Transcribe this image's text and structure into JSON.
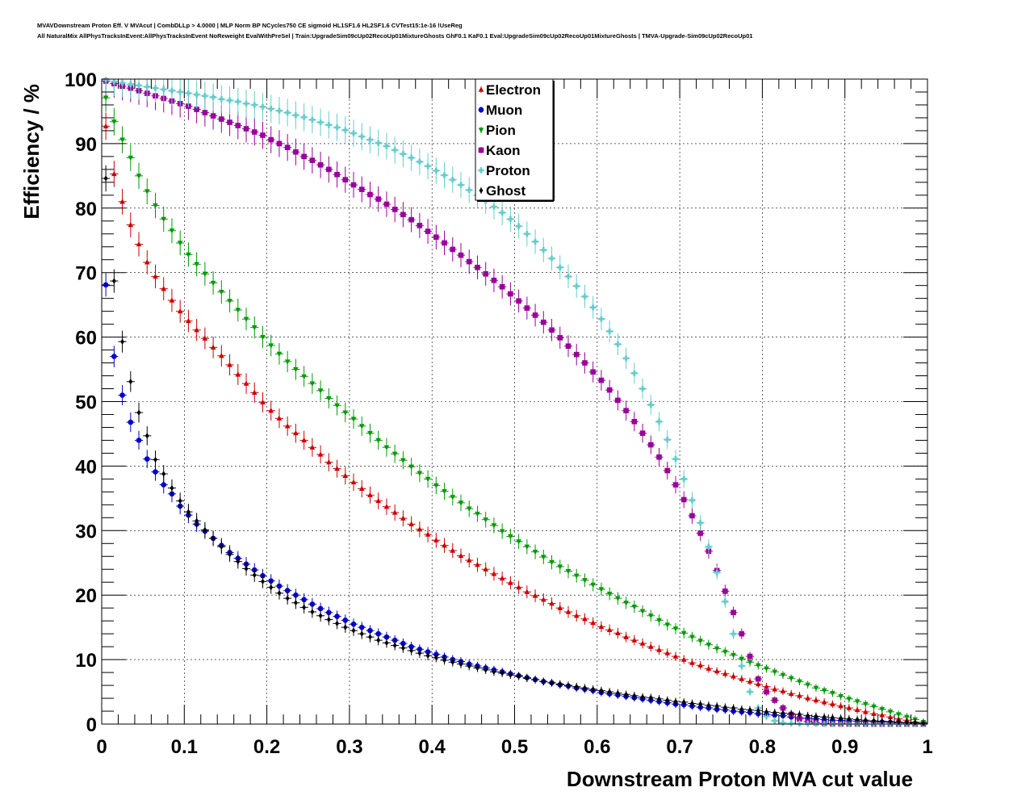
{
  "header": {
    "line1": "MVAVDownstream Proton Eff. V MVAcut | CombDLLp > 4.0000 | MLP Norm BP NCycles750 CE sigmoid HL1SF1.6 HL2SF1.6 CVTest15:1e-16 !UseReg",
    "line2": "All NaturalMix AllPhysTracksInEvent:AllPhysTracksInEvent NoReweight EvalWithPreSel | Train:UpgradeSim09cUp02RecoUp01MixtureGhosts GhF0.1 KaF0.1 Eval:UpgradeSim09cUp02RecoUp01MixtureGhosts | TMVA-Upgrade-Sim09cUp02RecoUp01"
  },
  "chart_data": {
    "type": "scatter",
    "xlabel": "Downstream Proton MVA cut value",
    "ylabel": "Efficiency / %",
    "xlim": [
      0,
      1
    ],
    "ylim": [
      0,
      100
    ],
    "grid": true,
    "legend_position": "top-center",
    "x_ticks": [
      "0",
      "0.1",
      "0.2",
      "0.3",
      "0.4",
      "0.5",
      "0.6",
      "0.7",
      "0.8",
      "0.9",
      "1"
    ],
    "y_ticks": [
      "0",
      "10",
      "20",
      "30",
      "40",
      "50",
      "60",
      "70",
      "80",
      "90",
      "100"
    ],
    "x": [
      0.005,
      0.015,
      0.025,
      0.035,
      0.045,
      0.055,
      0.065,
      0.075,
      0.085,
      0.095,
      0.105,
      0.115,
      0.125,
      0.135,
      0.145,
      0.155,
      0.165,
      0.175,
      0.185,
      0.195,
      0.205,
      0.215,
      0.225,
      0.235,
      0.245,
      0.255,
      0.265,
      0.275,
      0.285,
      0.295,
      0.305,
      0.315,
      0.325,
      0.335,
      0.345,
      0.355,
      0.365,
      0.375,
      0.385,
      0.395,
      0.405,
      0.415,
      0.425,
      0.435,
      0.445,
      0.455,
      0.465,
      0.475,
      0.485,
      0.495,
      0.505,
      0.515,
      0.525,
      0.535,
      0.545,
      0.555,
      0.565,
      0.575,
      0.585,
      0.595,
      0.605,
      0.615,
      0.625,
      0.635,
      0.645,
      0.655,
      0.665,
      0.675,
      0.685,
      0.695,
      0.705,
      0.715,
      0.725,
      0.735,
      0.745,
      0.755,
      0.765,
      0.775,
      0.785,
      0.795,
      0.805,
      0.815,
      0.825,
      0.835,
      0.845,
      0.855,
      0.865,
      0.875,
      0.885,
      0.895,
      0.905,
      0.915,
      0.925,
      0.935,
      0.945,
      0.955,
      0.965,
      0.975,
      0.985,
      0.995
    ],
    "series": [
      {
        "name": "Electron",
        "color": "#cc0000",
        "marker": "triangle-up",
        "values": [
          92.7,
          85.3,
          81.0,
          77.4,
          74.4,
          71.6,
          69.4,
          67.5,
          65.7,
          64.0,
          62.5,
          61.1,
          59.8,
          58.4,
          57.1,
          55.7,
          54.2,
          52.8,
          51.4,
          49.9,
          48.6,
          47.4,
          46.2,
          45.1,
          44.0,
          42.9,
          41.8,
          40.6,
          39.6,
          38.5,
          37.5,
          36.5,
          35.5,
          34.6,
          33.7,
          32.8,
          31.9,
          31.0,
          30.2,
          29.4,
          28.5,
          27.7,
          26.9,
          26.1,
          25.4,
          24.7,
          24.0,
          23.3,
          22.6,
          21.9,
          21.2,
          20.5,
          19.9,
          19.3,
          18.7,
          18.0,
          17.4,
          16.8,
          16.3,
          15.7,
          15.1,
          14.6,
          14.1,
          13.5,
          13.0,
          12.5,
          12.0,
          11.5,
          11.0,
          10.5,
          10.0,
          9.5,
          9.1,
          8.6,
          8.2,
          7.8,
          7.4,
          7.0,
          6.6,
          6.2,
          5.8,
          5.4,
          5.1,
          4.7,
          4.4,
          4.0,
          3.7,
          3.4,
          3.1,
          2.8,
          2.5,
          2.2,
          1.9,
          1.6,
          1.4,
          1.1,
          0.8,
          0.6,
          0.3,
          0.1
        ]
      },
      {
        "name": "Muon",
        "color": "#0000cc",
        "marker": "circle",
        "values": [
          68.1,
          57.0,
          51.0,
          46.8,
          44.0,
          41.1,
          39.1,
          37.1,
          35.7,
          33.8,
          32.4,
          31.0,
          29.9,
          28.8,
          27.7,
          26.6,
          25.7,
          24.8,
          23.9,
          23.0,
          22.2,
          21.4,
          20.7,
          20.0,
          19.3,
          18.6,
          17.9,
          17.3,
          16.7,
          16.1,
          15.5,
          15.0,
          14.5,
          14.0,
          13.5,
          13.0,
          12.5,
          12.0,
          11.6,
          11.2,
          10.8,
          10.4,
          10.0,
          9.7,
          9.3,
          9.0,
          8.7,
          8.4,
          8.1,
          7.8,
          7.5,
          7.2,
          6.9,
          6.6,
          6.4,
          6.1,
          5.9,
          5.6,
          5.4,
          5.2,
          4.9,
          4.7,
          4.5,
          4.3,
          4.1,
          3.9,
          3.7,
          3.5,
          3.3,
          3.1,
          3.0,
          2.8,
          2.6,
          2.5,
          2.3,
          2.2,
          2.0,
          1.9,
          1.8,
          1.6,
          1.5,
          1.4,
          1.3,
          1.1,
          1.0,
          0.9,
          0.8,
          0.7,
          0.6,
          0.55,
          0.5,
          0.45,
          0.4,
          0.35,
          0.3,
          0.25,
          0.2,
          0.15,
          0.1,
          0.05
        ]
      },
      {
        "name": "Pion",
        "color": "#009900",
        "marker": "triangle-down",
        "values": [
          97.1,
          93.4,
          90.6,
          87.8,
          85.0,
          82.6,
          80.4,
          78.3,
          76.5,
          74.6,
          72.8,
          71.3,
          69.8,
          68.4,
          67.0,
          65.6,
          64.2,
          62.8,
          61.5,
          60.0,
          58.7,
          57.4,
          56.2,
          55.0,
          53.9,
          52.8,
          51.7,
          50.5,
          49.4,
          48.3,
          47.3,
          46.2,
          45.1,
          44.0,
          42.9,
          41.9,
          40.9,
          39.9,
          38.9,
          38.0,
          37.0,
          36.1,
          35.2,
          34.3,
          33.4,
          32.6,
          31.7,
          30.8,
          29.9,
          29.1,
          28.3,
          27.5,
          26.7,
          25.9,
          25.1,
          24.4,
          23.7,
          23.0,
          22.3,
          21.6,
          20.9,
          20.2,
          19.5,
          18.8,
          18.2,
          17.5,
          16.8,
          16.1,
          15.4,
          14.8,
          14.1,
          13.5,
          12.9,
          12.3,
          11.7,
          11.2,
          10.7,
          10.1,
          9.6,
          9.1,
          8.6,
          8.1,
          7.6,
          7.1,
          6.6,
          6.1,
          5.6,
          5.2,
          4.8,
          4.3,
          3.9,
          3.5,
          3.1,
          2.7,
          2.3,
          1.9,
          1.5,
          1.1,
          0.7,
          0.3
        ]
      },
      {
        "name": "Kaon",
        "color": "#990099",
        "marker": "square",
        "values": [
          99.7,
          99.3,
          98.9,
          98.6,
          98.2,
          97.8,
          97.4,
          97.0,
          96.6,
          96.2,
          95.8,
          95.3,
          94.8,
          94.3,
          93.8,
          93.3,
          92.8,
          92.3,
          91.8,
          91.3,
          90.6,
          90.0,
          89.4,
          88.7,
          88.0,
          87.4,
          86.7,
          86.0,
          85.2,
          84.4,
          83.6,
          82.9,
          82.1,
          81.4,
          80.6,
          79.8,
          79.0,
          78.2,
          77.3,
          76.4,
          75.5,
          74.6,
          73.6,
          72.7,
          71.7,
          70.8,
          69.8,
          68.8,
          67.8,
          66.7,
          65.6,
          64.5,
          63.4,
          62.3,
          61.1,
          59.9,
          58.6,
          57.3,
          56.0,
          54.6,
          53.3,
          51.8,
          50.2,
          48.6,
          46.9,
          45.1,
          43.3,
          41.4,
          39.3,
          37.1,
          34.8,
          32.3,
          29.6,
          26.8,
          23.8,
          20.6,
          17.3,
          14.0,
          10.5,
          7.0,
          5.0,
          3.7,
          2.5,
          1.5,
          0.8,
          0.4,
          0.2,
          0.1,
          0.05,
          0.02,
          0.01,
          0.01,
          0.0,
          0.0,
          0.0,
          0.0,
          0.0,
          0.0,
          0.0,
          0.0
        ]
      },
      {
        "name": "Proton",
        "color": "#66cccc",
        "marker": "cross",
        "values": [
          99.9,
          99.6,
          99.4,
          99.2,
          99.0,
          98.8,
          98.6,
          98.4,
          98.2,
          98.0,
          97.8,
          97.6,
          97.4,
          97.2,
          96.9,
          96.7,
          96.5,
          96.2,
          96.0,
          95.7,
          95.4,
          95.1,
          94.8,
          94.4,
          94.1,
          93.7,
          93.3,
          92.9,
          92.5,
          92.1,
          91.6,
          91.1,
          90.6,
          90.1,
          89.6,
          89.0,
          88.4,
          87.8,
          87.2,
          86.5,
          85.8,
          85.1,
          84.4,
          83.6,
          82.8,
          82.0,
          81.1,
          80.2,
          79.3,
          78.3,
          77.2,
          76.0,
          74.8,
          73.5,
          72.2,
          70.8,
          69.4,
          67.9,
          66.3,
          64.6,
          62.8,
          60.9,
          58.9,
          56.7,
          54.4,
          52.0,
          49.5,
          46.9,
          44.1,
          41.1,
          38.0,
          34.7,
          31.2,
          27.5,
          23.5,
          19.0,
          14.0,
          9.0,
          5.0,
          2.5,
          1.2,
          0.5,
          0.2,
          0.1,
          0.05,
          0.02,
          0.01,
          0.0,
          0.0,
          0.0,
          0.0,
          0.0,
          0.0,
          0.0,
          0.0,
          0.0,
          0.0,
          0.0,
          0.0,
          0.0
        ]
      },
      {
        "name": "Ghost",
        "color": "#000000",
        "marker": "diamond",
        "values": [
          84.6,
          68.7,
          59.3,
          53.1,
          48.3,
          44.7,
          41.0,
          38.8,
          36.6,
          34.6,
          32.9,
          31.5,
          30.1,
          28.8,
          27.5,
          26.3,
          25.2,
          24.1,
          23.1,
          22.1,
          21.2,
          20.3,
          19.5,
          18.8,
          18.1,
          17.4,
          16.8,
          16.2,
          15.6,
          15.0,
          14.5,
          14.0,
          13.5,
          13.0,
          12.6,
          12.2,
          11.8,
          11.4,
          11.0,
          10.6,
          10.3,
          9.9,
          9.6,
          9.3,
          9.0,
          8.7,
          8.4,
          8.1,
          7.9,
          7.6,
          7.4,
          7.1,
          6.9,
          6.6,
          6.4,
          6.2,
          6.0,
          5.8,
          5.6,
          5.4,
          5.2,
          5.0,
          4.8,
          4.6,
          4.4,
          4.2,
          4.1,
          3.9,
          3.7,
          3.5,
          3.4,
          3.2,
          3.1,
          2.9,
          2.8,
          2.6,
          2.5,
          2.3,
          2.2,
          2.1,
          1.9,
          1.8,
          1.7,
          1.6,
          1.5,
          1.3,
          1.2,
          1.1,
          1.0,
          0.9,
          0.8,
          0.7,
          0.6,
          0.5,
          0.45,
          0.4,
          0.3,
          0.25,
          0.2,
          0.1
        ]
      }
    ]
  }
}
